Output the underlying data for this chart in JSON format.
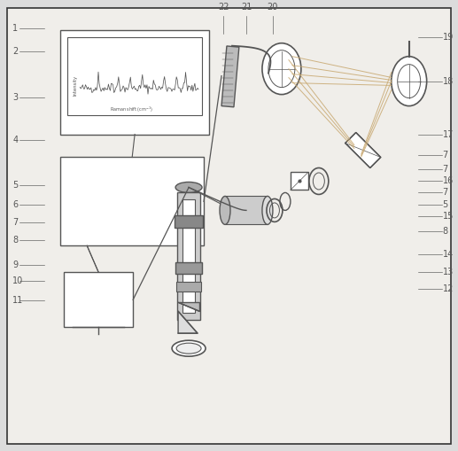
{
  "bg_color": "#dcdcdc",
  "border_color": "#333333",
  "line_color": "#555555",
  "ray_color": "#c8a870",
  "figsize": [
    5.17,
    5.09
  ],
  "dpi": 100
}
